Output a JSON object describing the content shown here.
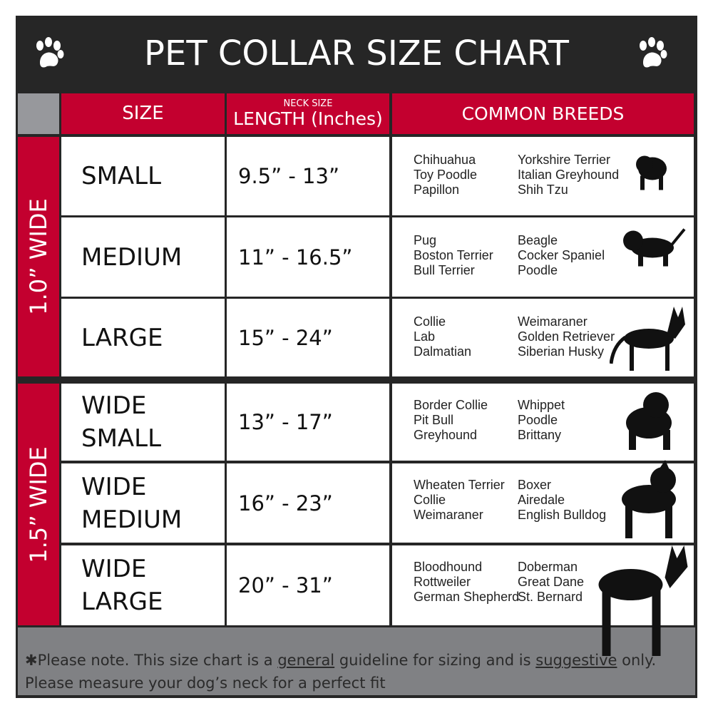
{
  "title": "PET COLLAR SIZE CHART",
  "headers": {
    "size": "SIZE",
    "length_small": "NECK SIZE",
    "length": "LENGTH (Inches)",
    "breeds": "COMMON BREEDS"
  },
  "groups": [
    {
      "label": "1.0” WIDE"
    },
    {
      "label": "1.5” WIDE"
    }
  ],
  "rows": [
    {
      "size": "SMALL",
      "length": "9.5” - 13”",
      "breeds_a": [
        "Chihuahua",
        "Toy Poodle",
        "Papillon"
      ],
      "breeds_b": [
        "Yorkshire Terrier",
        "Italian Greyhound",
        "Shih Tzu"
      ]
    },
    {
      "size": "MEDIUM",
      "length": "11” - 16.5”",
      "breeds_a": [
        "Pug",
        "Boston Terrier",
        "Bull Terrier"
      ],
      "breeds_b": [
        "Beagle",
        "Cocker Spaniel",
        "Poodle"
      ]
    },
    {
      "size": "LARGE",
      "length": "15” - 24”",
      "breeds_a": [
        "Collie",
        "Lab",
        "Dalmatian"
      ],
      "breeds_b": [
        "Weimaraner",
        "Golden Retriever",
        "Siberian Husky"
      ]
    },
    {
      "size": "WIDE SMALL",
      "length": "13” - 17”",
      "breeds_a": [
        "Border Collie",
        "Pit Bull",
        "Greyhound"
      ],
      "breeds_b": [
        "Whippet",
        "Poodle",
        "Brittany"
      ]
    },
    {
      "size": "WIDE MEDIUM",
      "length": "16” - 23”",
      "breeds_a": [
        "Wheaten Terrier",
        "Collie",
        "Weimaraner"
      ],
      "breeds_b": [
        "Boxer",
        "Airedale",
        "English Bulldog"
      ]
    },
    {
      "size": "WIDE LARGE",
      "length": "20” - 31”",
      "breeds_a": [
        "Bloodhound",
        "Rottweiler",
        "German Shepherd"
      ],
      "breeds_b": [
        "Doberman",
        "Great Dane",
        "St. Bernard"
      ]
    }
  ],
  "footer": {
    "p1": "✱Please note. This size chart is a ",
    "u1": "general",
    "p2": " guideline for sizing and is ",
    "u2": "suggestive",
    "p3": " only.",
    "line2": "Please measure your dog’s neck for a perfect fit"
  },
  "colors": {
    "accent": "#c3002f",
    "frame": "#262626",
    "footer": "#808184"
  }
}
